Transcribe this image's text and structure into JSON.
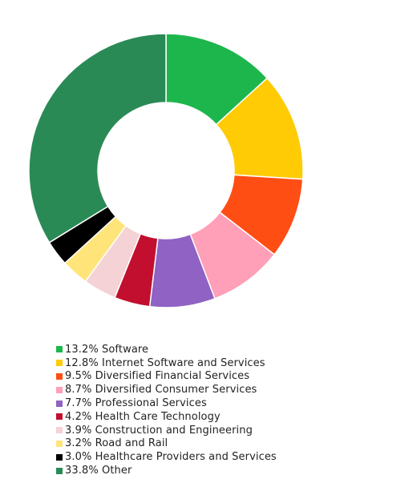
{
  "chart_data": {
    "type": "pie",
    "donut": true,
    "categories": [
      "Software",
      "Internet Software and Services",
      "Diversified Financial Services",
      "Diversified Consumer Services",
      "Professional Services",
      "Health Care Technology",
      "Construction and Engineering",
      "Road and Rail",
      "Healthcare Providers and Services",
      "Other"
    ],
    "values": [
      13.2,
      12.8,
      9.5,
      8.7,
      7.7,
      4.2,
      3.9,
      3.2,
      3.0,
      33.8
    ],
    "colors": [
      "#1db64c",
      "#ffcb05",
      "#ff4e14",
      "#ff9fb8",
      "#8f62c4",
      "#c20f2f",
      "#f5d2d6",
      "#ffe47a",
      "#000000",
      "#2a8a55"
    ],
    "legend_position": "bottom",
    "legend": [
      {
        "label": "13.2% Software",
        "color": "#1db64c"
      },
      {
        "label": "12.8% Internet Software and Services",
        "color": "#ffcb05"
      },
      {
        "label": "9.5% Diversified Financial Services",
        "color": "#ff4e14"
      },
      {
        "label": "8.7% Diversified Consumer Services",
        "color": "#ff9fb8"
      },
      {
        "label": "7.7% Professional Services",
        "color": "#8f62c4"
      },
      {
        "label": "4.2% Health Care Technology",
        "color": "#c20f2f"
      },
      {
        "label": "3.9% Construction and Engineering",
        "color": "#f5d2d6"
      },
      {
        "label": "3.2% Road and Rail",
        "color": "#ffe47a"
      },
      {
        "label": "3.0% Healthcare Providers and Services",
        "color": "#000000"
      },
      {
        "label": "33.8% Other",
        "color": "#2a8a55"
      }
    ]
  }
}
